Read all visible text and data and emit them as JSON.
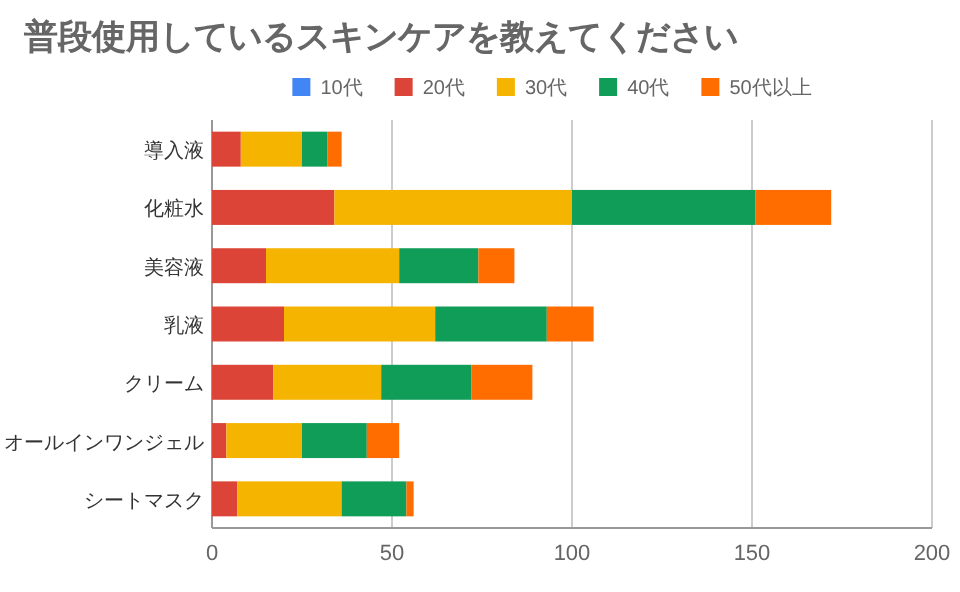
{
  "chart_data": {
    "type": "bar",
    "orientation": "horizontal",
    "stacked": true,
    "title": "普段使用しているスキンケアを教えてください",
    "categories": [
      "導入液",
      "化粧水",
      "美容液",
      "乳液",
      "クリーム",
      "オールインワンジェル",
      "シートマスク"
    ],
    "series": [
      {
        "name": "10代",
        "color": "#4285f4",
        "values": [
          0,
          0,
          0,
          0,
          0,
          0,
          0
        ]
      },
      {
        "name": "20代",
        "color": "#db4437",
        "values": [
          8,
          34,
          15,
          20,
          17,
          4,
          7
        ]
      },
      {
        "name": "30代",
        "color": "#f4b400",
        "values": [
          17,
          66,
          37,
          42,
          30,
          21,
          29
        ]
      },
      {
        "name": "40代",
        "color": "#0f9d58",
        "values": [
          7,
          51,
          22,
          31,
          25,
          18,
          18
        ]
      },
      {
        "name": "50代以上",
        "color": "#ff6d01",
        "values": [
          4,
          21,
          10,
          13,
          17,
          9,
          2
        ]
      }
    ],
    "xlim": [
      0,
      200
    ],
    "xticks": [
      0,
      50,
      100,
      150,
      200
    ],
    "grid": "x",
    "legend": "top"
  }
}
